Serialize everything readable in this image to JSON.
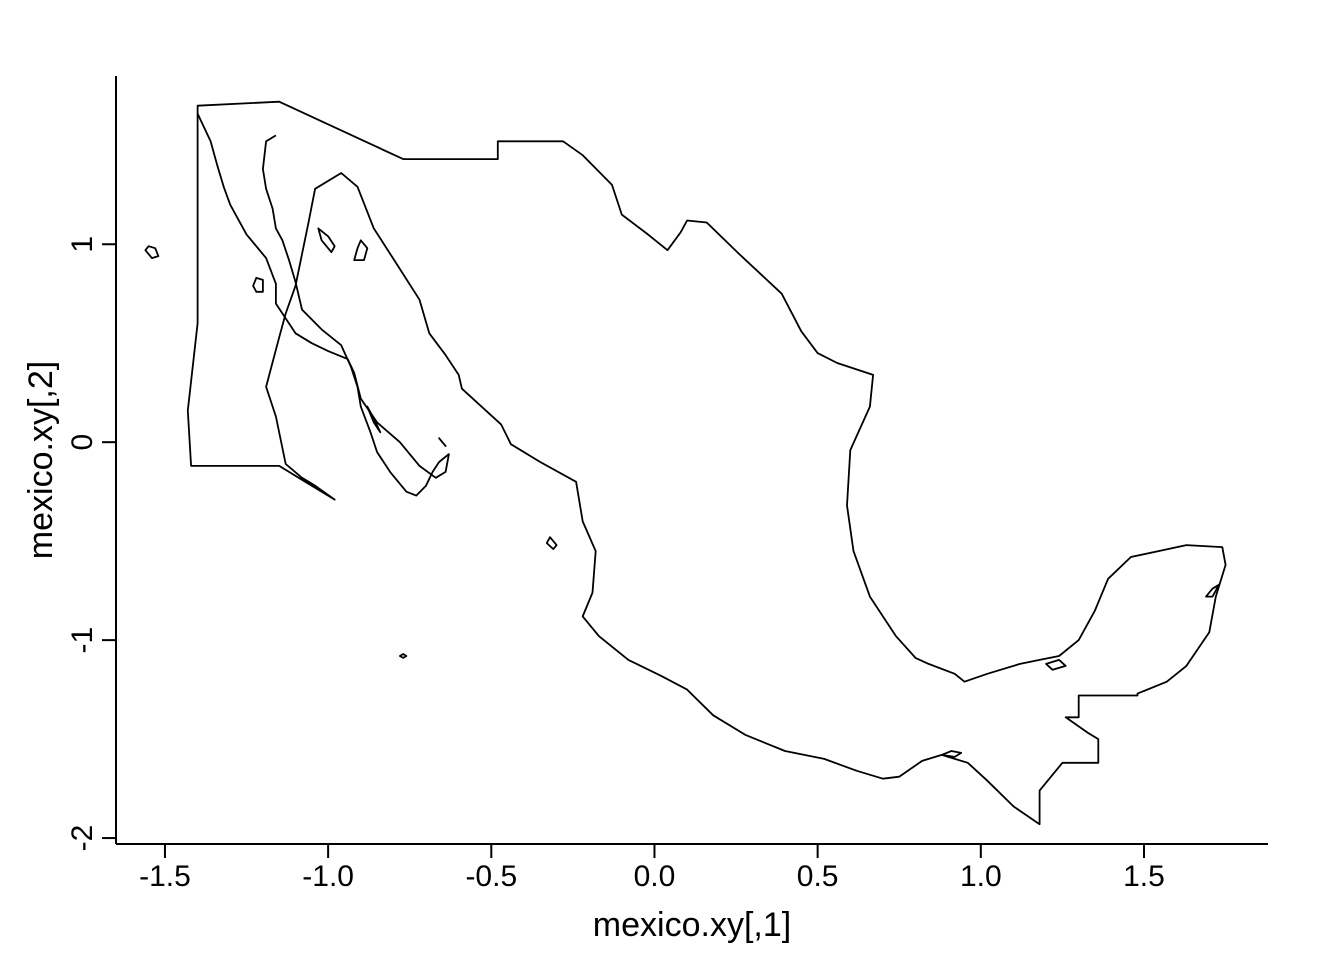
{
  "chart_data": {
    "type": "line",
    "title": "",
    "xlabel": "mexico.xy[,1]",
    "ylabel": "mexico.xy[,2]",
    "xlim": [
      -1.65,
      1.88
    ],
    "ylim": [
      -2.03,
      1.85
    ],
    "grid": false,
    "x_ticks": [
      -1.5,
      -1.0,
      -0.5,
      0.0,
      0.5,
      1.0,
      1.5
    ],
    "x_tick_labels": [
      "-1.5",
      "-1.0",
      "-0.5",
      "0.0",
      "0.5",
      "1.0",
      "1.5"
    ],
    "y_ticks": [
      -2,
      -1,
      0,
      1
    ],
    "y_tick_labels": [
      "-2",
      "-1",
      "0",
      "1"
    ],
    "series": [
      {
        "part": "mainland",
        "x": [
          -1.4,
          -1.15,
          -0.77,
          -0.48,
          -0.48,
          -0.28,
          -0.22,
          -0.13,
          -0.1,
          -0.02,
          0.04,
          0.08,
          0.1,
          0.16,
          0.26,
          0.39,
          0.45,
          0.5,
          0.56,
          0.67,
          0.66,
          0.6,
          0.59,
          0.61,
          0.66,
          0.74,
          0.8,
          0.84,
          0.92,
          0.95,
          1.02,
          1.12,
          1.18,
          1.24,
          1.3,
          1.35,
          1.39,
          1.46,
          1.63,
          1.74,
          1.75,
          1.72,
          1.7,
          1.63,
          1.57,
          1.48,
          1.48,
          1.3,
          1.3,
          1.26,
          1.33,
          1.36,
          1.36,
          1.25,
          1.18,
          1.18,
          1.1,
          1.02,
          0.96,
          0.88,
          0.82,
          0.75,
          0.7,
          0.62,
          0.52,
          0.4,
          0.28,
          0.18,
          0.1,
          0.02,
          -0.08,
          -0.17,
          -0.22,
          -0.19,
          -0.18,
          -0.22,
          -0.24,
          -0.35,
          -0.44,
          -0.47,
          -0.59,
          -0.6,
          -0.64,
          -0.69,
          -0.72,
          -0.79,
          -0.86,
          -0.91,
          -0.96,
          -1.04,
          -1.06,
          -1.1,
          -1.13,
          -1.15,
          -1.19,
          -1.16,
          -1.13,
          -1.08,
          -1.04,
          -0.98,
          -1.07,
          -1.15,
          -1.24,
          -1.34,
          -1.39,
          -1.42,
          -1.43,
          -1.4
        ],
        "y": [
          1.7,
          1.72,
          1.43,
          1.43,
          1.52,
          1.52,
          1.45,
          1.3,
          1.15,
          1.05,
          0.97,
          1.06,
          1.12,
          1.11,
          0.95,
          0.75,
          0.56,
          0.45,
          0.4,
          0.34,
          0.18,
          -0.04,
          -0.32,
          -0.55,
          -0.78,
          -0.98,
          -1.09,
          -1.12,
          -1.17,
          -1.21,
          -1.17,
          -1.12,
          -1.1,
          -1.08,
          -1.0,
          -0.85,
          -0.69,
          -0.58,
          -0.52,
          -0.53,
          -0.62,
          -0.78,
          -0.96,
          -1.13,
          -1.21,
          -1.27,
          -1.28,
          -1.28,
          -1.39,
          -1.39,
          -1.47,
          -1.5,
          -1.62,
          -1.62,
          -1.76,
          -1.93,
          -1.84,
          -1.71,
          -1.62,
          -1.58,
          -1.61,
          -1.69,
          -1.7,
          -1.66,
          -1.6,
          -1.56,
          -1.48,
          -1.38,
          -1.25,
          -1.18,
          -1.1,
          -0.98,
          -0.88,
          -0.76,
          -0.55,
          -0.4,
          -0.2,
          -0.1,
          -0.01,
          0.09,
          0.27,
          0.34,
          0.44,
          0.55,
          0.72,
          0.9,
          1.08,
          1.29,
          1.36,
          1.28,
          1.11,
          0.79,
          0.65,
          0.53,
          0.28,
          0.13,
          -0.11,
          -0.18,
          -0.22,
          -0.29,
          -0.2,
          -0.12,
          -0.12,
          -0.12,
          -0.12,
          -0.12,
          0.16,
          0.6
        ],
        "closed": true
      },
      {
        "part": "baja_california",
        "x": [
          -1.4,
          -1.36,
          -1.34,
          -1.32,
          -1.3,
          -1.25,
          -1.19,
          -1.16,
          -1.16,
          -1.12,
          -1.1,
          -1.05,
          -1.0,
          -0.94,
          -0.92,
          -0.9,
          -0.85,
          -0.78,
          -0.72,
          -0.67,
          -0.64,
          -0.63,
          -0.66,
          -0.68,
          -0.7,
          -0.73,
          -0.76,
          -0.81,
          -0.85,
          -0.87,
          -0.9,
          -0.91,
          -0.93,
          -0.96,
          -1.02,
          -1.08,
          -1.1,
          -1.12,
          -1.14,
          -1.16,
          -1.17,
          -1.19,
          -1.2,
          -1.19,
          -1.16
        ],
        "y": [
          1.66,
          1.52,
          1.4,
          1.29,
          1.2,
          1.05,
          0.93,
          0.8,
          0.7,
          0.6,
          0.55,
          0.5,
          0.46,
          0.42,
          0.35,
          0.22,
          0.1,
          0.0,
          -0.12,
          -0.18,
          -0.15,
          -0.06,
          -0.1,
          -0.15,
          -0.22,
          -0.27,
          -0.25,
          -0.15,
          -0.05,
          0.05,
          0.18,
          0.28,
          0.38,
          0.49,
          0.57,
          0.67,
          0.81,
          0.92,
          1.02,
          1.08,
          1.18,
          1.28,
          1.38,
          1.52,
          1.55
        ],
        "closed": false
      },
      {
        "part": "island",
        "x": [
          -1.55,
          -1.53,
          -1.52,
          -1.54,
          -1.56,
          -1.55
        ],
        "y": [
          0.99,
          0.98,
          0.94,
          0.93,
          0.97,
          0.99
        ],
        "closed": true
      },
      {
        "part": "island",
        "x": [
          -1.22,
          -1.2,
          -1.2,
          -1.22,
          -1.23,
          -1.22
        ],
        "y": [
          0.83,
          0.82,
          0.76,
          0.76,
          0.79,
          0.83
        ],
        "closed": true
      },
      {
        "part": "island",
        "x": [
          -1.03,
          -1.0,
          -0.98,
          -0.99,
          -1.02,
          -1.03
        ],
        "y": [
          1.08,
          1.04,
          0.99,
          0.96,
          1.02,
          1.08
        ],
        "closed": true
      },
      {
        "part": "island",
        "x": [
          -0.9,
          -0.88,
          -0.89,
          -0.92,
          -0.91,
          -0.9
        ],
        "y": [
          1.02,
          0.98,
          0.92,
          0.92,
          0.98,
          1.02
        ],
        "closed": true
      },
      {
        "part": "island",
        "x": [
          -0.88,
          -0.86,
          -0.84,
          -0.86,
          -0.88
        ],
        "y": [
          0.18,
          0.12,
          0.05,
          0.1,
          0.18
        ],
        "closed": true
      },
      {
        "part": "island",
        "x": [
          -0.66,
          -0.64,
          -0.65,
          -0.66
        ],
        "y": [
          0.02,
          -0.02,
          0.0,
          0.02
        ],
        "closed": true
      },
      {
        "part": "island",
        "x": [
          -0.32,
          -0.3,
          -0.31,
          -0.33,
          -0.32
        ],
        "y": [
          -0.48,
          -0.52,
          -0.54,
          -0.51,
          -0.48
        ],
        "closed": true
      },
      {
        "part": "island",
        "x": [
          -0.77,
          -0.76,
          -0.77,
          -0.78,
          -0.77
        ],
        "y": [
          -1.07,
          -1.08,
          -1.09,
          -1.08,
          -1.07
        ],
        "closed": true
      },
      {
        "part": "island",
        "x": [
          1.73,
          1.71,
          1.69,
          1.71,
          1.73
        ],
        "y": [
          -0.72,
          -0.74,
          -0.78,
          -0.78,
          -0.72
        ],
        "closed": true
      },
      {
        "part": "island",
        "x": [
          1.2,
          1.24,
          1.26,
          1.22,
          1.2
        ],
        "y": [
          -1.12,
          -1.1,
          -1.13,
          -1.15,
          -1.12
        ],
        "closed": true
      },
      {
        "part": "island",
        "x": [
          0.88,
          0.91,
          0.94,
          0.92,
          0.88
        ],
        "y": [
          -1.58,
          -1.56,
          -1.57,
          -1.59,
          -1.58
        ],
        "closed": true
      }
    ]
  }
}
